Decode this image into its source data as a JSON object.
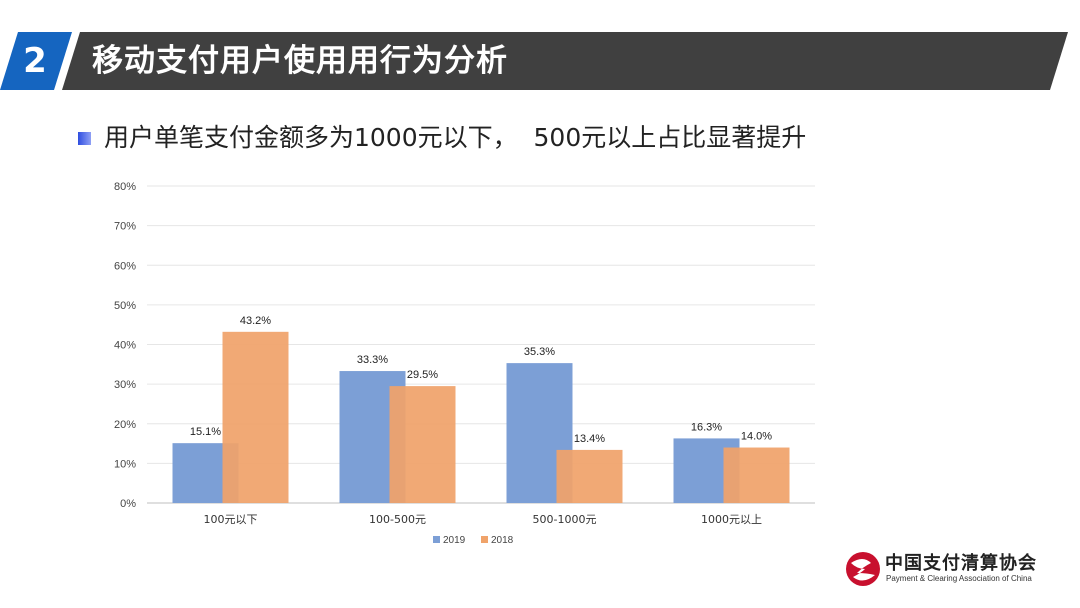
{
  "header": {
    "section_number": "2",
    "title": "移动支付用户使用用行为分析",
    "colors": {
      "accent": "#1565c0",
      "bar": "#404040"
    }
  },
  "subtitle": "用户单笔支付金额多为1000元以下，  500元以上占比显著提升",
  "chart_data": {
    "type": "bar",
    "categories": [
      "100元以下",
      "100-500元",
      "500-1000元",
      "1000元以上"
    ],
    "series": [
      {
        "name": "2019",
        "values": [
          15.1,
          33.3,
          35.3,
          16.3
        ],
        "labels": [
          "15.1%",
          "33.3%",
          "35.3%",
          "16.3%"
        ],
        "color": "#7c9fd6"
      },
      {
        "name": "2018",
        "values": [
          43.2,
          29.5,
          13.4,
          14.0
        ],
        "labels": [
          "43.2%",
          "29.5%",
          "13.4%",
          "14.0%"
        ],
        "color": "#f0a36a"
      }
    ],
    "yticks": [
      "0%",
      "10%",
      "20%",
      "30%",
      "40%",
      "50%",
      "60%",
      "70%",
      "80%"
    ],
    "ylim": [
      0,
      80
    ],
    "grid": true,
    "legend": "bottom-center"
  },
  "logo": {
    "name_cn": "中国支付清算协会",
    "name_en": "Payment & Clearing Association of China",
    "colors": {
      "primary": "#c8102e"
    }
  }
}
